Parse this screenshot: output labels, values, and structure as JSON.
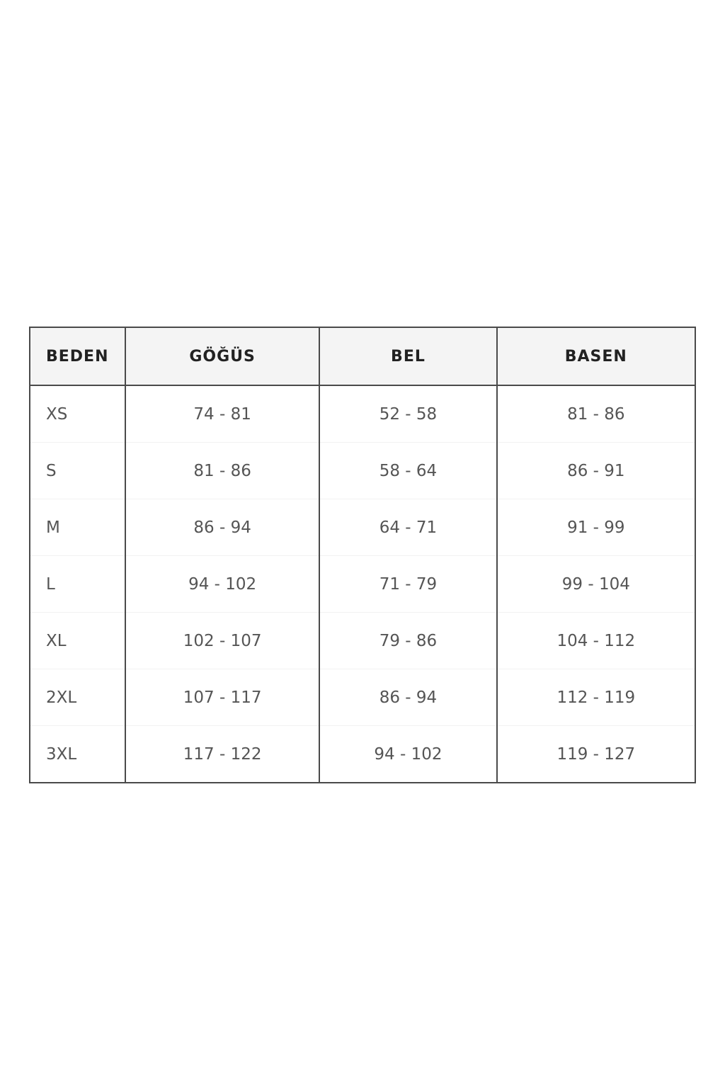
{
  "size_chart": {
    "headers": [
      "BEDEN",
      "GÖĞÜS",
      "BEL",
      "BASEN"
    ],
    "rows": [
      [
        "XS",
        "74 - 81",
        "52 - 58",
        "81 - 86"
      ],
      [
        "S",
        "81 - 86",
        "58 - 64",
        "86 - 91"
      ],
      [
        "M",
        "86 - 94",
        "64 - 71",
        "91 - 99"
      ],
      [
        "L",
        "94 - 102",
        "71 - 79",
        "99 - 104"
      ],
      [
        "XL",
        "102 - 107",
        "79 - 86",
        "104 - 112"
      ],
      [
        "2XL",
        "107 - 117",
        "86 - 94",
        "112 - 119"
      ],
      [
        "3XL",
        "117 - 122",
        "94 - 102",
        "119 - 127"
      ]
    ]
  }
}
